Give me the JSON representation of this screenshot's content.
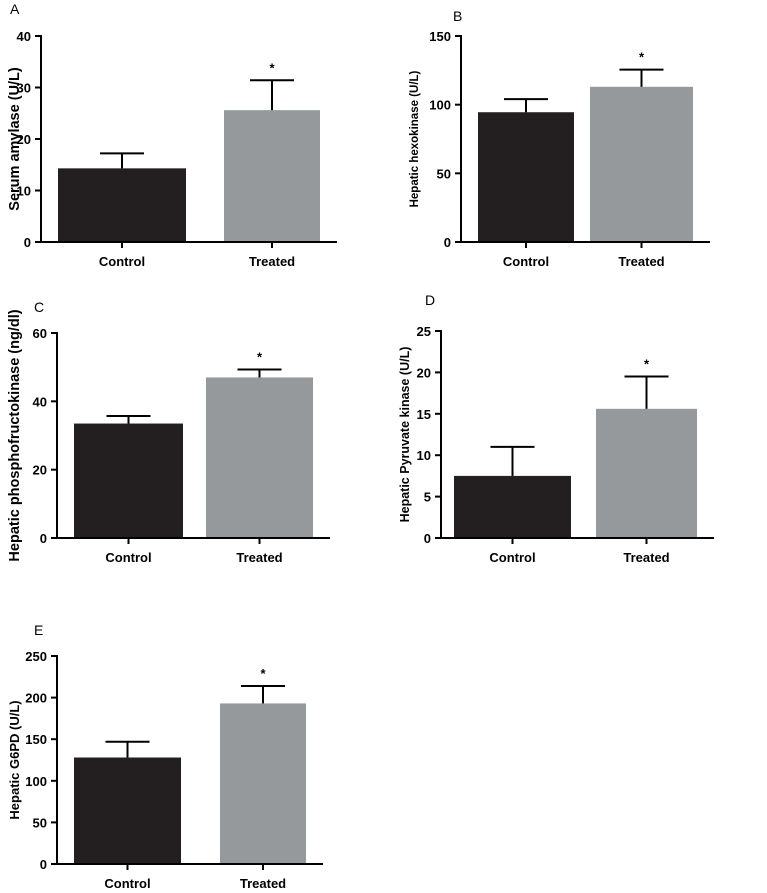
{
  "figure": {
    "colors": {
      "control": "#231f20",
      "treated": "#96999c",
      "axis": "#000000"
    },
    "panels": [
      {
        "letter": "A"
      },
      {
        "letter": "B"
      },
      {
        "letter": "C"
      },
      {
        "letter": "D"
      },
      {
        "letter": "E"
      }
    ]
  },
  "chart_data": [
    {
      "panel": "A",
      "type": "bar",
      "ylabel": "Serum amylase (U/L)",
      "categories": [
        "Control",
        "Treated"
      ],
      "values": [
        14.3,
        25.6
      ],
      "errors": [
        2.9,
        5.8
      ],
      "significance": [
        "",
        "*"
      ],
      "ylim": [
        0,
        40
      ],
      "yticks": [
        0,
        10,
        20,
        30,
        40
      ],
      "grid": false
    },
    {
      "panel": "B",
      "type": "bar",
      "ylabel": "Hepatic hexokinase (U/L)",
      "categories": [
        "Control",
        "Treated"
      ],
      "values": [
        94.5,
        113.0
      ],
      "errors": [
        9.5,
        12.5
      ],
      "significance": [
        "",
        "*"
      ],
      "ylim": [
        0,
        150
      ],
      "yticks": [
        0,
        50,
        100,
        150
      ],
      "grid": false
    },
    {
      "panel": "C",
      "type": "bar",
      "ylabel": "Hepatic phosphofructokinase (ng/dl)",
      "categories": [
        "Control",
        "Treated"
      ],
      "values": [
        33.5,
        47.0
      ],
      "errors": [
        2.2,
        2.3
      ],
      "significance": [
        "",
        "*"
      ],
      "ylim": [
        0,
        60
      ],
      "yticks": [
        0,
        20,
        40,
        60
      ],
      "grid": false
    },
    {
      "panel": "D",
      "type": "bar",
      "ylabel": "Hepatic Pyruvate kinase (U/L)",
      "categories": [
        "Control",
        "Treated"
      ],
      "values": [
        7.5,
        15.6
      ],
      "errors": [
        3.5,
        3.9
      ],
      "significance": [
        "",
        "*"
      ],
      "ylim": [
        0,
        25
      ],
      "yticks": [
        0,
        5,
        10,
        15,
        20,
        25
      ],
      "grid": false
    },
    {
      "panel": "E",
      "type": "bar",
      "ylabel": "Hepatic G6PD (U/L)",
      "categories": [
        "Control",
        "Treated"
      ],
      "values": [
        128,
        193
      ],
      "errors": [
        19,
        21
      ],
      "significance": [
        "",
        "*"
      ],
      "ylim": [
        0,
        250
      ],
      "yticks": [
        0,
        50,
        100,
        150,
        200,
        250
      ],
      "grid": false
    }
  ]
}
